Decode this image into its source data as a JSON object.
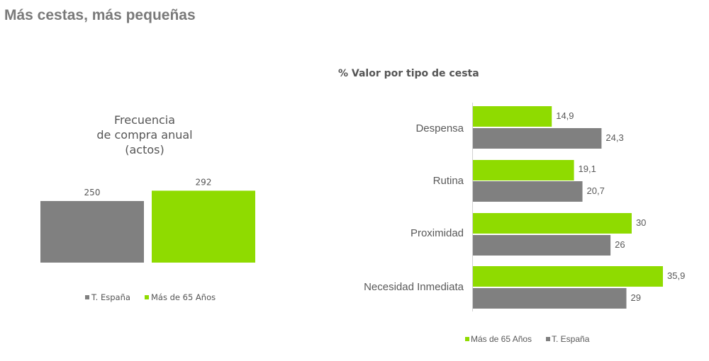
{
  "page": {
    "title": "Más cestas, más pequeñas"
  },
  "colors": {
    "green": "#8fdb00",
    "gray": "#808080"
  },
  "chart_data": [
    {
      "type": "bar",
      "title_lines": [
        "Frecuencia",
        "de compra anual",
        "(actos)"
      ],
      "series": [
        {
          "name": "T. España",
          "value": 250,
          "label": "250",
          "color": "#808080"
        },
        {
          "name": "Más de 65 Años",
          "value": 292,
          "label": "292",
          "color": "#8fdb00"
        }
      ],
      "legend": {
        "placement": "bottom",
        "items": [
          "T. España",
          "Más de 65 Años"
        ]
      }
    },
    {
      "type": "bar",
      "orientation": "horizontal",
      "title": "% Valor por tipo de cesta",
      "categories": [
        "Despensa",
        "Rutina",
        "Proximidad",
        "Necesidad Inmediata"
      ],
      "series": [
        {
          "name": "Más de 65 Años",
          "values": [
            14.9,
            19.1,
            30,
            35.9
          ],
          "labels": [
            "14,9",
            "19,1",
            "30",
            "35,9"
          ],
          "color": "#8fdb00"
        },
        {
          "name": "T. España",
          "values": [
            24.3,
            20.7,
            26,
            29
          ],
          "labels": [
            "24,3",
            "20,7",
            "26",
            "29"
          ],
          "color": "#808080"
        }
      ],
      "legend": {
        "placement": "bottom",
        "items": [
          "Más de 65 Años",
          "T. España"
        ]
      }
    }
  ]
}
